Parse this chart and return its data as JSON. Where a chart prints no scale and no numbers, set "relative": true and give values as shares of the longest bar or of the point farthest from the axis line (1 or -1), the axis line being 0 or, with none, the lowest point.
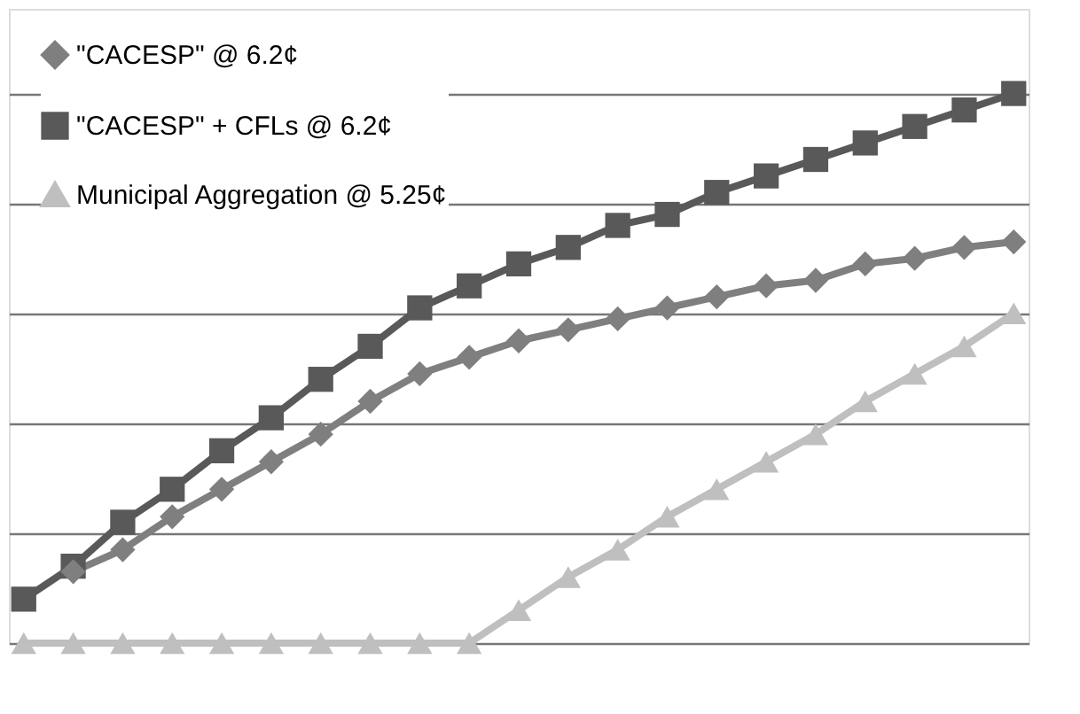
{
  "chart_data": {
    "type": "line",
    "relative": true,
    "grid": "y",
    "legend": "top left",
    "tick_labels": false,
    "line_style": "solid",
    "categories": [
      null,
      null,
      null,
      null,
      null,
      null,
      null,
      null,
      null,
      null,
      null,
      null,
      null,
      null,
      null,
      null,
      null,
      null,
      null,
      null,
      null
    ],
    "series": [
      {
        "name": "\"CACESP\" @ 6.2¢",
        "color": "#7f7f7f",
        "marker": "diamond",
        "values": [
          null,
          0.13,
          0.17,
          0.23,
          0.28,
          0.33,
          0.38,
          0.44,
          0.49,
          0.52,
          0.55,
          0.57,
          0.59,
          0.61,
          0.63,
          0.65,
          0.66,
          0.69,
          0.7,
          0.72,
          0.73
        ]
      },
      {
        "name": "\"CACESP\" + CFLs @ 6.2¢",
        "color": "#595959",
        "marker": "square",
        "values": [
          0.08,
          0.14,
          0.22,
          0.28,
          0.35,
          0.41,
          0.48,
          0.54,
          0.61,
          0.65,
          0.69,
          0.72,
          0.76,
          0.78,
          0.82,
          0.85,
          0.88,
          0.91,
          0.94,
          0.97,
          1.0
        ]
      },
      {
        "name": "Municipal Aggregation @ 5.25¢",
        "color": "#bfbfbf",
        "marker": "triangle",
        "values": [
          0,
          0,
          0,
          0,
          0,
          0,
          0,
          0,
          0,
          0,
          0.06,
          0.12,
          0.17,
          0.23,
          0.28,
          0.33,
          0.38,
          0.44,
          0.49,
          0.54,
          0.6
        ]
      }
    ]
  }
}
